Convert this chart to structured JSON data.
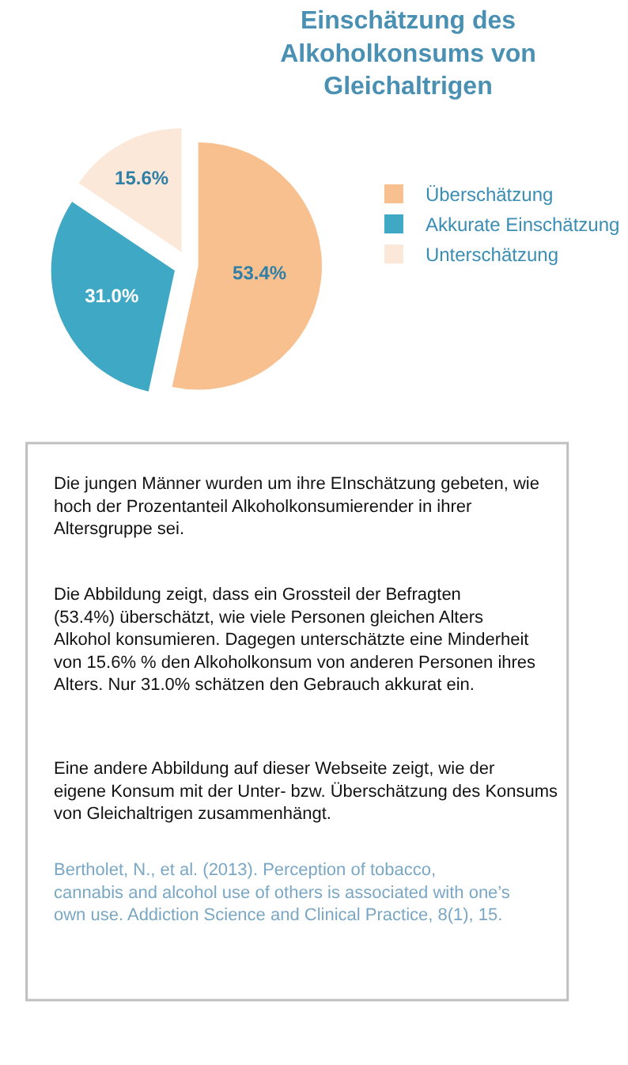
{
  "chart_data": {
    "type": "pie",
    "title": "Einschätzung des Alkoholkonsums von Gleichaltrigen",
    "categories": [
      "Überschätzung",
      "Akkurate Einschätzung",
      "Unterschätzung"
    ],
    "values": [
      53.4,
      31.0,
      15.6
    ],
    "colors": [
      "#f9c08f",
      "#3fa8c4",
      "#fce8d9"
    ],
    "value_labels": [
      "53.4%",
      "31.0%",
      "15.6%"
    ],
    "legend": "right",
    "annotations": [
      "Die jungen Männer wurden um ihre EInschätzung gebeten, wie hoch der Prozentanteil Alkoholkonsumierender in ihrer Altersgruppe sei.",
      "Die Abbildung zeigt, dass ein Grossteil der Befragten (53.4%) überschätzt, wie viele Personen gleichen Alters Alkohol konsumieren. Dagegen unterschätzte eine Minderheit von 15.6% % den Alkoholkonsum von anderen Personen ihres Alters. Nur 31.0% schätzen den Gebrauch akkurat ein.",
      "Eine andere Abbildung auf dieser Webseite zeigt, wie der eigene Konsum mit der Unter- bzw. Überschätzung des Konsums von Gleichaltrigen zusammenhängt.",
      "Bertholet, N., et al. (2013). Perception of tobacco, cannabis and alcohol use of others is associated with one’s own use. Addiction Science and Clinical Practice, 8(1), 15."
    ]
  }
}
